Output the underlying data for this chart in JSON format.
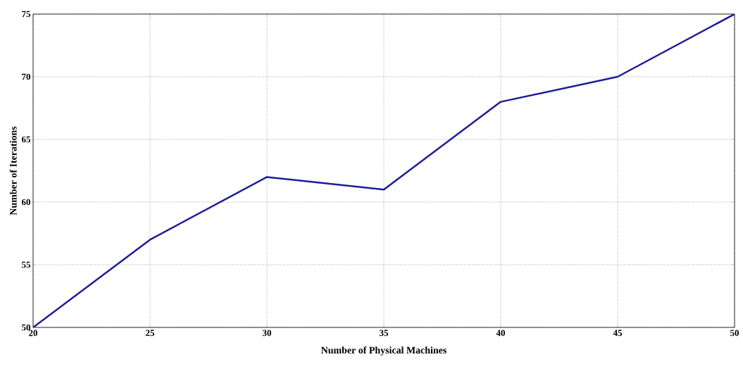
{
  "chart_data": {
    "type": "line",
    "xlabel": "Number of Physical Machines",
    "ylabel": "Number of Iterations",
    "x": [
      20,
      25,
      30,
      35,
      40,
      45,
      50
    ],
    "values": [
      50,
      57,
      62,
      61,
      68,
      70,
      75
    ],
    "color": "#1c1c96",
    "xlim": [
      20,
      50
    ],
    "ylim": [
      50,
      75
    ],
    "xticks": [
      20,
      25,
      30,
      35,
      40,
      45,
      50
    ],
    "yticks": [
      50,
      55,
      60,
      65,
      70,
      75
    ],
    "grid": true
  }
}
